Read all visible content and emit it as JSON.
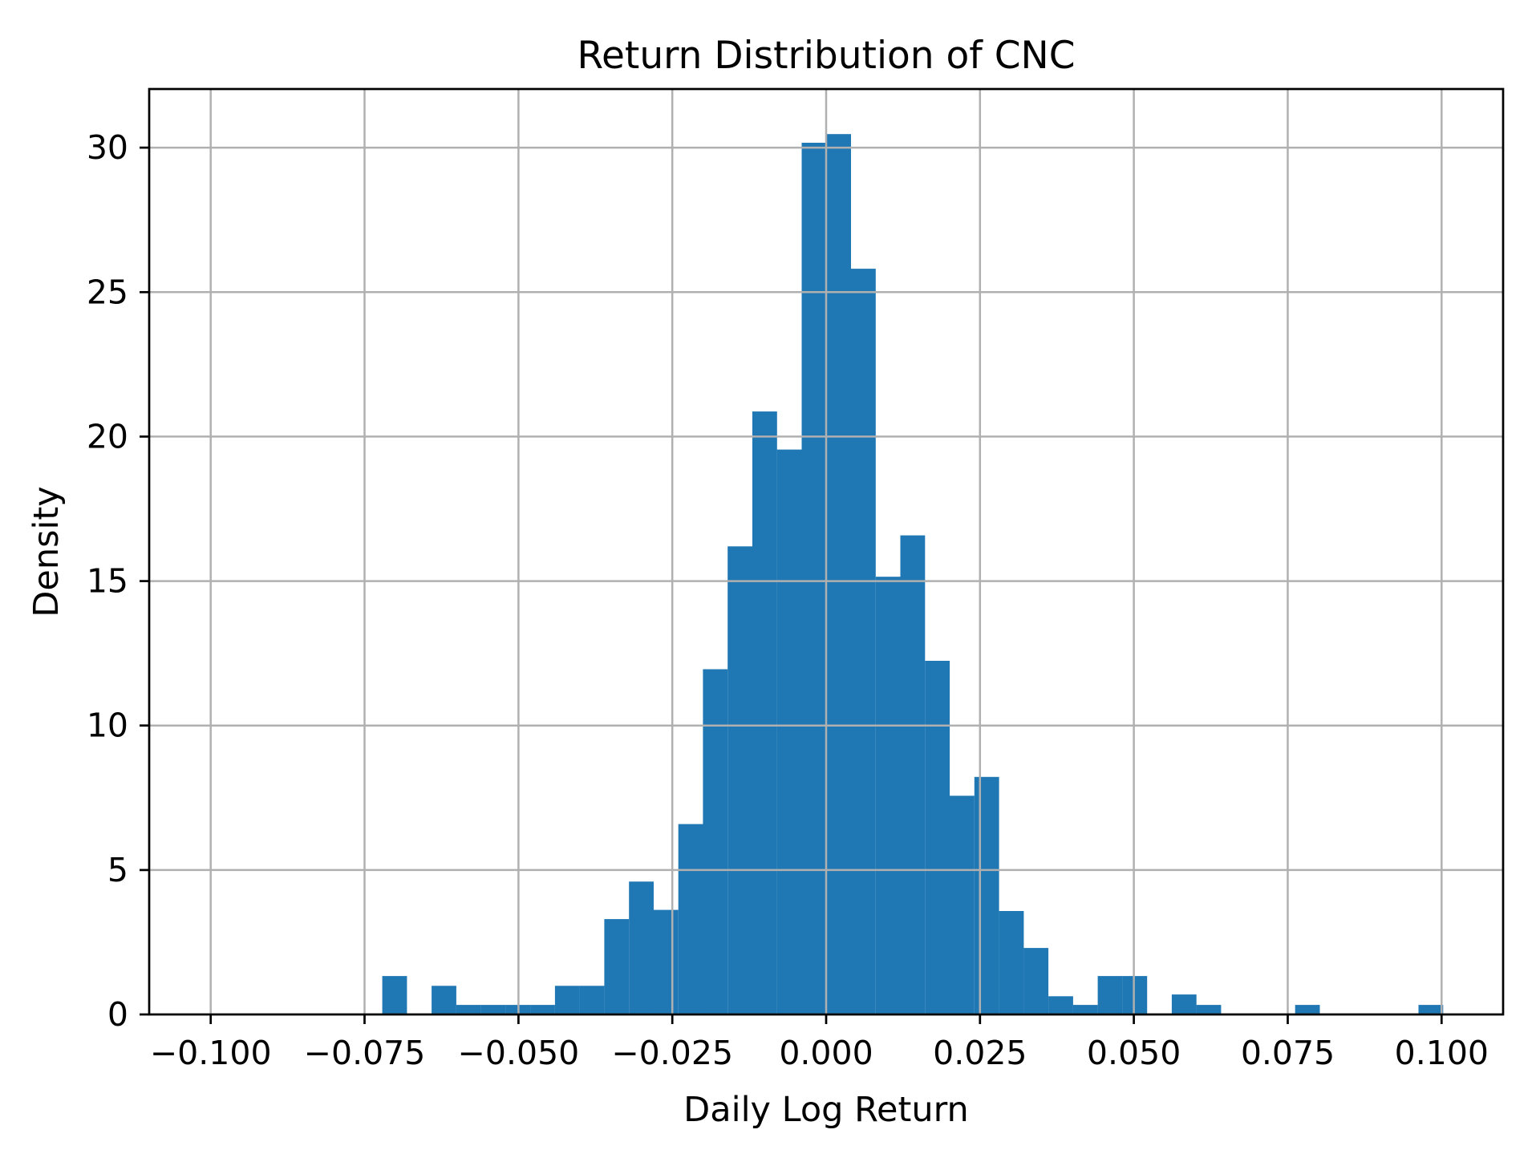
{
  "figure": {
    "background": "#ffffff"
  },
  "chart_data": {
    "type": "bar",
    "subtype": "histogram",
    "title": "Return Distribution of CNC",
    "xlabel": "Daily Log Return",
    "ylabel": "Density",
    "bar_color": "#1f77b4",
    "grid_color": "#b0b0b0",
    "axis_color": "#000000",
    "grid": true,
    "grid_above_bars": true,
    "legend_position": "none",
    "xlim": [
      -0.11,
      0.11
    ],
    "ylim": [
      0,
      32.03
    ],
    "x_ticks": [
      -0.1,
      -0.075,
      -0.05,
      -0.025,
      0.0,
      0.025,
      0.05,
      0.075,
      0.1
    ],
    "x_tick_labels": [
      "−0.100",
      "−0.075",
      "−0.050",
      "−0.025",
      "0.000",
      "0.025",
      "0.050",
      "0.075",
      "0.100"
    ],
    "y_ticks": [
      0,
      5,
      10,
      15,
      20,
      25,
      30
    ],
    "y_tick_labels": [
      "0",
      "5",
      "10",
      "15",
      "20",
      "25",
      "30"
    ],
    "bin_start": -0.07213,
    "bin_width": 0.004009,
    "bin_count": 43,
    "densities": [
      1.33,
      0,
      0.99,
      0.33,
      0.33,
      0.33,
      0.33,
      0.99,
      0.99,
      3.3,
      4.6,
      3.62,
      6.59,
      11.95,
      16.2,
      20.87,
      19.55,
      30.17,
      30.47,
      25.81,
      15.15,
      16.58,
      12.24,
      7.57,
      8.22,
      3.58,
      2.3,
      0.63,
      0.33,
      1.33,
      1.33,
      0,
      0.69,
      0.33,
      0,
      0,
      0,
      0.33,
      0,
      0,
      0,
      0,
      0.33
    ]
  }
}
